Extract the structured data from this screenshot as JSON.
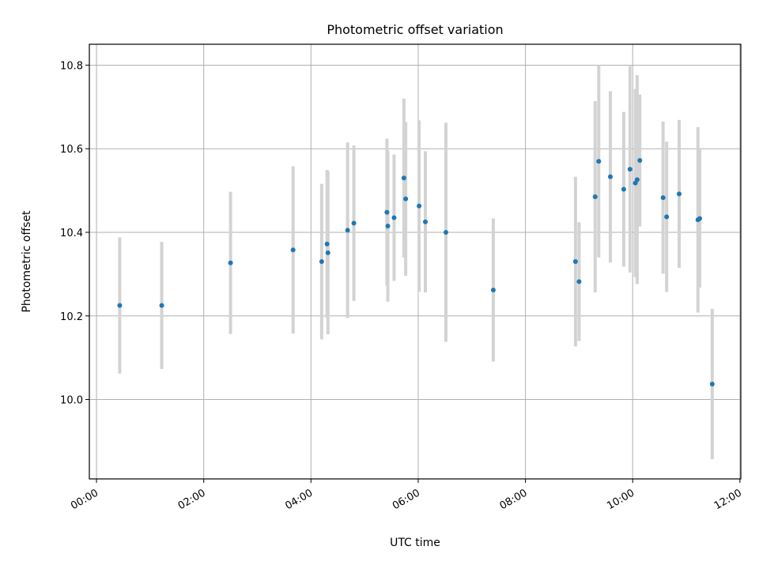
{
  "chart_data": {
    "type": "scatter",
    "title": "Photometric offset variation",
    "xlabel": "UTC time",
    "ylabel": "Photometric offset",
    "x_ticks": [
      "00:00",
      "02:00",
      "04:00",
      "06:00",
      "08:00",
      "10:00",
      "12:00"
    ],
    "y_ticks": [
      "10.0",
      "10.2",
      "10.4",
      "10.6",
      "10.8"
    ],
    "xlim": [
      "-00:08",
      "12:01"
    ],
    "ylim": [
      9.81,
      10.85
    ],
    "grid": true,
    "colors": {
      "point": "#1f77b4",
      "errorbar": "#d3d3d3",
      "grid": "#b0b0b0"
    },
    "points": [
      {
        "time": "00:26",
        "y": 10.225,
        "err": 0.163
      },
      {
        "time": "01:13",
        "y": 10.225,
        "err": 0.152
      },
      {
        "time": "02:30",
        "y": 10.327,
        "err": 0.17
      },
      {
        "time": "03:40",
        "y": 10.358,
        "err": 0.2
      },
      {
        "time": "04:12",
        "y": 10.33,
        "err": 0.186
      },
      {
        "time": "04:18",
        "y": 10.372,
        "err": 0.177
      },
      {
        "time": "04:19",
        "y": 10.351,
        "err": 0.195
      },
      {
        "time": "04:41",
        "y": 10.405,
        "err": 0.21
      },
      {
        "time": "04:48",
        "y": 10.422,
        "err": 0.186
      },
      {
        "time": "05:25",
        "y": 10.448,
        "err": 0.176
      },
      {
        "time": "05:26",
        "y": 10.415,
        "err": 0.181
      },
      {
        "time": "05:33",
        "y": 10.435,
        "err": 0.151
      },
      {
        "time": "05:44",
        "y": 10.53,
        "err": 0.19
      },
      {
        "time": "05:46",
        "y": 10.48,
        "err": 0.184
      },
      {
        "time": "06:01",
        "y": 10.463,
        "err": 0.205
      },
      {
        "time": "06:08",
        "y": 10.425,
        "err": 0.169
      },
      {
        "time": "06:31",
        "y": 10.4,
        "err": 0.262
      },
      {
        "time": "07:24",
        "y": 10.262,
        "err": 0.171
      },
      {
        "time": "08:56",
        "y": 10.33,
        "err": 0.203
      },
      {
        "time": "09:00",
        "y": 10.282,
        "err": 0.142
      },
      {
        "time": "09:18",
        "y": 10.485,
        "err": 0.229
      },
      {
        "time": "09:22",
        "y": 10.57,
        "err": 0.23
      },
      {
        "time": "09:35",
        "y": 10.533,
        "err": 0.205
      },
      {
        "time": "09:50",
        "y": 10.503,
        "err": 0.185
      },
      {
        "time": "09:57",
        "y": 10.551,
        "err": 0.247
      },
      {
        "time": "10:03",
        "y": 10.518,
        "err": 0.225
      },
      {
        "time": "10:05",
        "y": 10.526,
        "err": 0.25
      },
      {
        "time": "10:08",
        "y": 10.572,
        "err": 0.158
      },
      {
        "time": "10:34",
        "y": 10.483,
        "err": 0.182
      },
      {
        "time": "10:38",
        "y": 10.437,
        "err": 0.18
      },
      {
        "time": "10:52",
        "y": 10.492,
        "err": 0.177
      },
      {
        "time": "11:13",
        "y": 10.43,
        "err": 0.222
      },
      {
        "time": "11:15",
        "y": 10.433,
        "err": 0.165
      },
      {
        "time": "11:29",
        "y": 10.037,
        "err": 0.18
      }
    ]
  }
}
